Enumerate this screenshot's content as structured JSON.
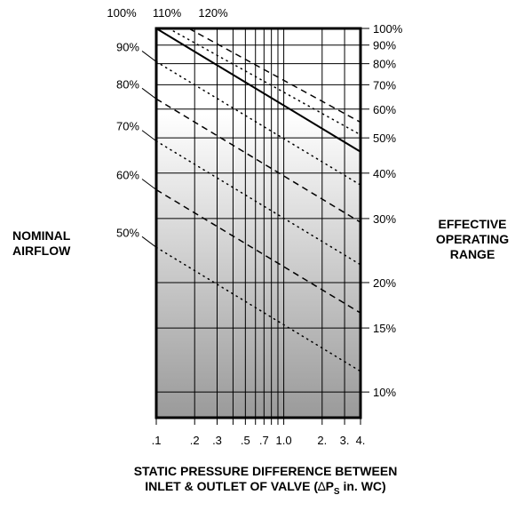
{
  "chart_data": {
    "type": "line",
    "x_scale": "log",
    "y_scale": "log",
    "xlim": [
      0.1,
      4
    ],
    "ylim": [
      8.5,
      100
    ],
    "grid": true,
    "x_ticks": [
      {
        "value": 0.1,
        "label": ".1"
      },
      {
        "value": 0.2,
        "label": ".2"
      },
      {
        "value": 0.3,
        "label": ".3"
      },
      {
        "value": 0.5,
        "label": ".5"
      },
      {
        "value": 0.7,
        "label": ".7"
      },
      {
        "value": 1.0,
        "label": "1.0"
      },
      {
        "value": 2,
        "label": "2."
      },
      {
        "value": 3,
        "label": "3."
      },
      {
        "value": 4,
        "label": "4."
      }
    ],
    "x_minor_ticks": [
      0.4,
      0.6,
      0.8,
      0.9
    ],
    "x_title_line1": "STATIC PRESSURE DIFFERENCE BETWEEN",
    "x_title_line2_pre": "INLET & OUTLET OF VALVE (",
    "x_title_delta": "∆",
    "x_title_p": "P",
    "x_title_sub": "S",
    "x_title_post": " in. WC)",
    "y_right_ticks": [
      {
        "value": 100,
        "label": "100%"
      },
      {
        "value": 90,
        "label": "90%"
      },
      {
        "value": 80,
        "label": "80%"
      },
      {
        "value": 70,
        "label": "70%"
      },
      {
        "value": 60,
        "label": "60%"
      },
      {
        "value": 50,
        "label": "50%"
      },
      {
        "value": 40,
        "label": "40%"
      },
      {
        "value": 30,
        "label": "30%"
      },
      {
        "value": 20,
        "label": "20%"
      },
      {
        "value": 15,
        "label": "15%"
      },
      {
        "value": 10,
        "label": "10%"
      }
    ],
    "y_right_title_line1": "EFFECTIVE",
    "y_right_title_line2": "OPERATING",
    "y_right_title_line3": "RANGE",
    "y_left_title_line1": "NOMINAL",
    "y_left_title_line2": "AIRFLOW",
    "nominal_labels": [
      "100%",
      "110%",
      "120%",
      "90%",
      "80%",
      "70%",
      "60%",
      "50%"
    ],
    "series": [
      {
        "name": "100%",
        "style": "solid",
        "x": [
          0.1,
          4
        ],
        "y": [
          100,
          45.8
        ]
      },
      {
        "name": "110%",
        "style": "dotted",
        "x": [
          0.125,
          4
        ],
        "y": [
          100,
          51.0
        ]
      },
      {
        "name": "120%",
        "style": "dashed",
        "x": [
          0.18,
          4
        ],
        "y": [
          100,
          55.2
        ]
      },
      {
        "name": "90%",
        "style": "dotted",
        "x": [
          0.1,
          4
        ],
        "y": [
          81.0,
          37.1
        ]
      },
      {
        "name": "80%",
        "style": "dashed",
        "x": [
          0.1,
          4
        ],
        "y": [
          64.0,
          29.3
        ]
      },
      {
        "name": "70%",
        "style": "dotted",
        "x": [
          0.1,
          4
        ],
        "y": [
          49.0,
          22.4
        ]
      },
      {
        "name": "60%",
        "style": "dashed",
        "x": [
          0.1,
          4
        ],
        "y": [
          36.0,
          16.5
        ]
      },
      {
        "name": "50%",
        "style": "dotted",
        "x": [
          0.1,
          4
        ],
        "y": [
          25.0,
          11.4
        ]
      }
    ],
    "background": {
      "top_color": "#ffffff",
      "bottom_color": "#9a9a9a"
    }
  }
}
